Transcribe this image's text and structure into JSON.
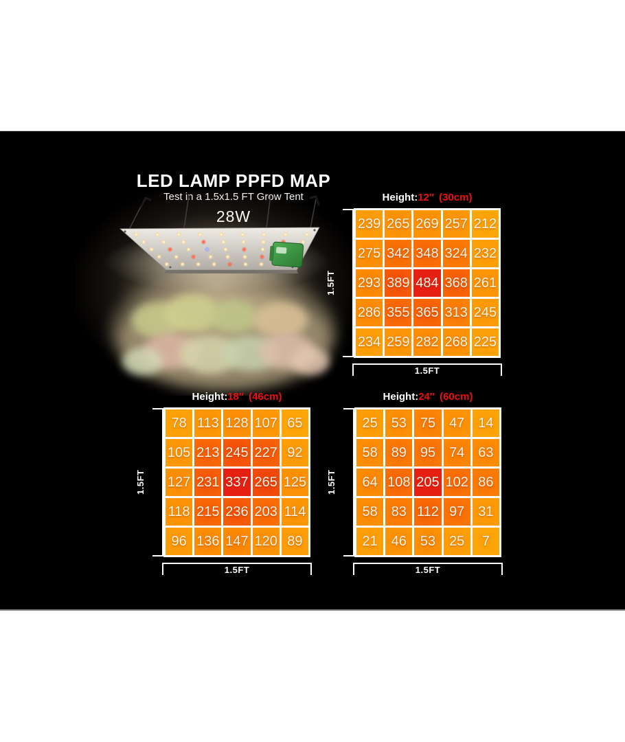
{
  "header": {
    "title": "LED LAMP PPFD MAP",
    "subtitle": "Test in a 1.5x1.5 FT Grow Tent",
    "wattage": "28W"
  },
  "colors": {
    "background_panel": "#000000",
    "header_red": "#ee1010",
    "grid_line": "#ffffff",
    "heat_edge": "#fca70a",
    "heat_center": "#e52012"
  },
  "chart_data": [
    {
      "type": "heatmap",
      "title": "Height:",
      "height_value": "12″",
      "height_metric": "(30cm)",
      "x_axis_label": "1.5FT",
      "y_axis_label": "1.5FT",
      "rows": [
        [
          239,
          265,
          269,
          257,
          212
        ],
        [
          275,
          342,
          348,
          324,
          232
        ],
        [
          293,
          389,
          484,
          368,
          261
        ],
        [
          286,
          355,
          365,
          313,
          245
        ],
        [
          234,
          259,
          282,
          268,
          225
        ]
      ]
    },
    {
      "type": "heatmap",
      "title": "Height:",
      "height_value": "18″",
      "height_metric": "(46cm)",
      "x_axis_label": "1.5FT",
      "y_axis_label": "1.5FT",
      "rows": [
        [
          78,
          113,
          128,
          107,
          65
        ],
        [
          105,
          213,
          245,
          227,
          92
        ],
        [
          127,
          231,
          337,
          265,
          125
        ],
        [
          118,
          215,
          236,
          203,
          114
        ],
        [
          96,
          136,
          147,
          120,
          89
        ]
      ]
    },
    {
      "type": "heatmap",
      "title": "Height:",
      "height_value": "24″",
      "height_metric": "(60cm)",
      "x_axis_label": "1.5FT",
      "y_axis_label": "1.5FT",
      "rows": [
        [
          25,
          53,
          75,
          47,
          14
        ],
        [
          58,
          89,
          95,
          74,
          63
        ],
        [
          64,
          108,
          205,
          102,
          86
        ],
        [
          58,
          83,
          112,
          97,
          31
        ],
        [
          21,
          46,
          53,
          25,
          7
        ]
      ]
    }
  ]
}
